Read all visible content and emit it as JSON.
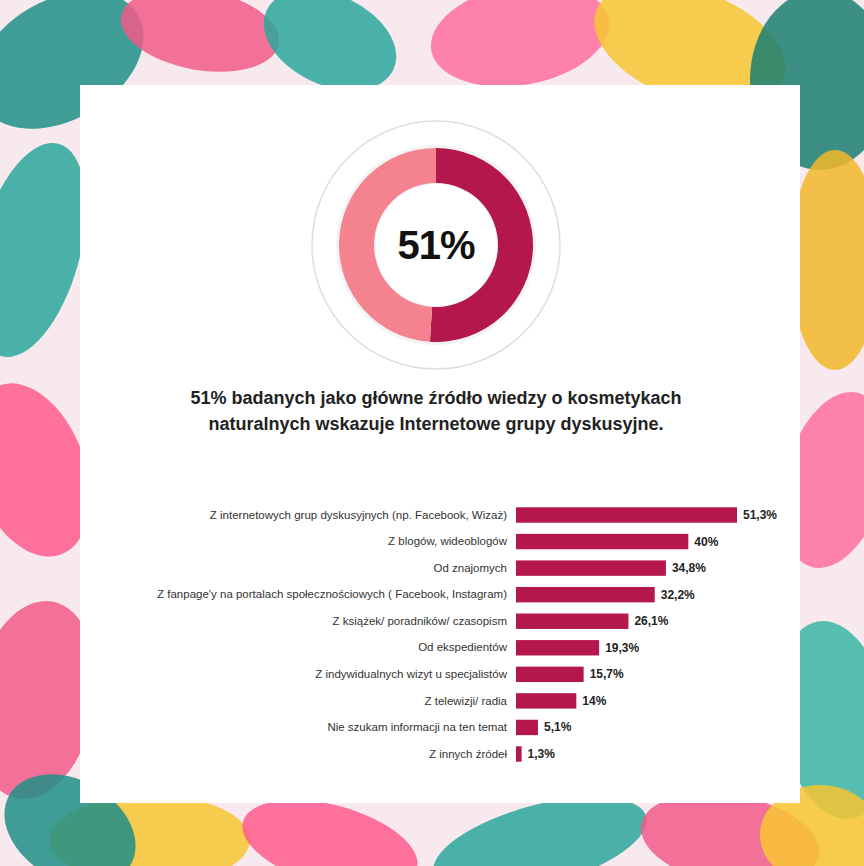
{
  "chart_data": [
    {
      "type": "pie",
      "title": "51% badanych jako główne źródło wiedzy o kosmetykach naturalnych wskazuje Internetowe grupy dyskusyjne.",
      "values": [
        51,
        49
      ],
      "value_labels": [
        "51%",
        null
      ],
      "colors": [
        "#b3174b",
        "#f4838f"
      ],
      "data_labels": true
    },
    {
      "type": "bar",
      "orientation": "horizontal",
      "categories": [
        "Z internetowych grup dyskusyjnych (np. Facebook, Wizaż)",
        "Z blogów, wideoblogów",
        "Od znajomych",
        "Z fanpage'y na portalach społecznościowych ( Facebook, Instagram)",
        "Z książek/ poradników/ czasopism",
        "Od ekspedientów",
        "Z indywidualnych wizyt u specjalistów",
        "Z telewizji/ radia",
        "Nie szukam informacji na ten temat",
        "Z innych źródeł"
      ],
      "values": [
        51.3,
        40,
        34.8,
        32.2,
        26.1,
        19.3,
        15.7,
        14,
        5.1,
        1.3
      ],
      "value_labels": [
        "51,3%",
        "40%",
        "34,8%",
        "32,2%",
        "26,1%",
        "19,3%",
        "15,7%",
        "14%",
        "5,1%",
        "1,3%"
      ],
      "color": "#b3174b",
      "data_labels": true,
      "tick_labels": "y"
    }
  ]
}
